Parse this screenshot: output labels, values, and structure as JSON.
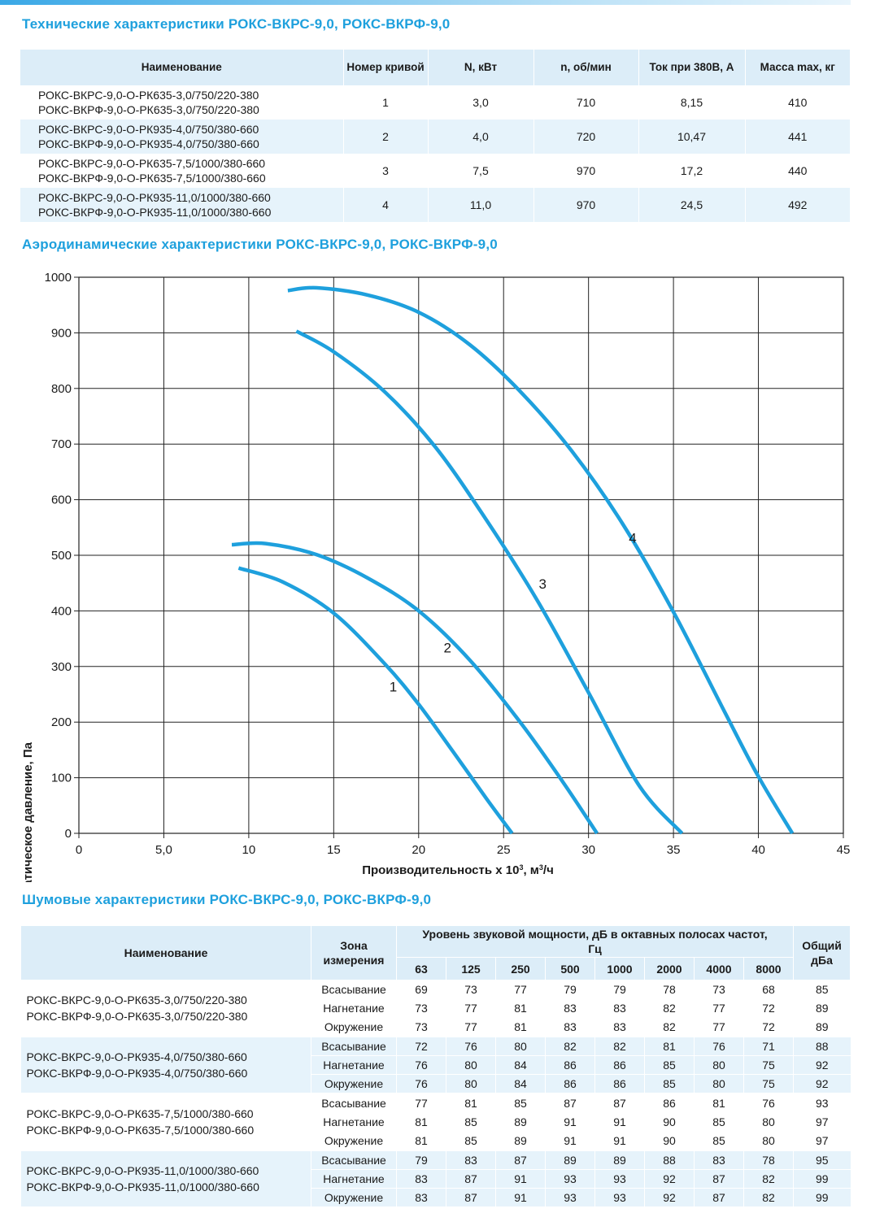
{
  "titles": {
    "tech": "Технические характеристики РОКС-ВКРС-9,0, РОКС-ВКРФ-9,0",
    "aero": "Аэродинамические характеристики РОКС-ВКРС-9,0, РОКС-ВКРФ-9,0",
    "noise": "Шумовые характеристики РОКС-ВКРС-9,0, РОКС-ВКРФ-9,0"
  },
  "tech_table": {
    "headers": [
      "Наименование",
      "Номер кривой",
      "N, кВт",
      "n, об/мин",
      "Ток при 380В, А",
      "Масса max, кг"
    ],
    "rows": [
      {
        "name": [
          "РОКС-ВКРС-9,0-О-РК635-3,0/750/220-380",
          "РОКС-ВКРФ-9,0-О-РК635-3,0/750/220-380"
        ],
        "curve": "1",
        "power": "3,0",
        "rpm": "710",
        "current": "8,15",
        "mass": "410"
      },
      {
        "name": [
          "РОКС-ВКРС-9,0-О-РК935-4,0/750/380-660",
          "РОКС-ВКРФ-9,0-О-РК935-4,0/750/380-660"
        ],
        "curve": "2",
        "power": "4,0",
        "rpm": "720",
        "current": "10,47",
        "mass": "441"
      },
      {
        "name": [
          "РОКС-ВКРС-9,0-О-РК635-7,5/1000/380-660",
          "РОКС-ВКРФ-9,0-О-РК635-7,5/1000/380-660"
        ],
        "curve": "3",
        "power": "7,5",
        "rpm": "970",
        "current": "17,2",
        "mass": "440"
      },
      {
        "name": [
          "РОКС-ВКРС-9,0-О-РК935-11,0/1000/380-660",
          "РОКС-ВКРФ-9,0-О-РК935-11,0/1000/380-660"
        ],
        "curve": "4",
        "power": "11,0",
        "rpm": "970",
        "current": "24,5",
        "mass": "492"
      }
    ]
  },
  "chart_data": {
    "type": "line",
    "title": "Аэродинамические характеристики РОКС-ВКРС-9,0, РОКС-ВКРФ-9,0",
    "xlabel_main": "Производительность х 10",
    "xlabel_sup": "3",
    "xlabel_tail": ", м",
    "xlabel_sup2": "3",
    "xlabel_end": "/ч",
    "ylabel": "Статическое давление, Па",
    "xlim": [
      0,
      45
    ],
    "ylim": [
      0,
      1000
    ],
    "x_ticks": [
      0,
      5,
      10,
      15,
      20,
      25,
      30,
      35,
      40,
      45
    ],
    "x_tick_labels": [
      "0",
      "5,0",
      "10",
      "15",
      "20",
      "25",
      "30",
      "35",
      "40",
      "45"
    ],
    "y_ticks": [
      0,
      100,
      200,
      300,
      400,
      500,
      600,
      700,
      800,
      900,
      1000
    ],
    "y_tick_labels": [
      "0",
      "100",
      "200",
      "300",
      "400",
      "500",
      "600",
      "700",
      "800",
      "900",
      "1000"
    ],
    "grid": true,
    "line_color": "#1ea0dd",
    "series": [
      {
        "name": "1",
        "label_at": [
          18.5,
          255
        ],
        "points": [
          [
            9.4,
            477
          ],
          [
            12,
            452
          ],
          [
            15,
            396
          ],
          [
            18,
            305
          ],
          [
            20,
            232
          ],
          [
            22,
            148
          ],
          [
            24,
            62
          ],
          [
            25.5,
            0
          ]
        ]
      },
      {
        "name": "2",
        "label_at": [
          21.7,
          325
        ],
        "points": [
          [
            9,
            519
          ],
          [
            11,
            521
          ],
          [
            14,
            501
          ],
          [
            17,
            459
          ],
          [
            20,
            400
          ],
          [
            23,
            312
          ],
          [
            26,
            199
          ],
          [
            28.5,
            92
          ],
          [
            30.5,
            0
          ]
        ]
      },
      {
        "name": "3",
        "label_at": [
          27.3,
          440
        ],
        "points": [
          [
            12.8,
            903
          ],
          [
            15,
            866
          ],
          [
            18,
            794
          ],
          [
            21,
            694
          ],
          [
            24,
            563
          ],
          [
            27,
            418
          ],
          [
            30,
            253
          ],
          [
            33,
            85
          ],
          [
            35.5,
            0
          ]
        ]
      },
      {
        "name": "4",
        "label_at": [
          32.6,
          523
        ],
        "points": [
          [
            12.3,
            976
          ],
          [
            14,
            981
          ],
          [
            17,
            968
          ],
          [
            20,
            937
          ],
          [
            23,
            879
          ],
          [
            26,
            794
          ],
          [
            29,
            688
          ],
          [
            32,
            557
          ],
          [
            35,
            398
          ],
          [
            38,
            219
          ],
          [
            40,
            102
          ],
          [
            42,
            0
          ]
        ]
      }
    ]
  },
  "noise_table": {
    "header_name": "Наименование",
    "header_zone": "Зона измерения",
    "header_band": "Уровень звуковой мощности, дБ в октавных полосах частот, Гц",
    "header_total": "Общий дБа",
    "freqs": [
      "63",
      "125",
      "250",
      "500",
      "1000",
      "2000",
      "4000",
      "8000"
    ],
    "groups": [
      {
        "name": [
          "РОКС-ВКРС-9,0-О-РК635-3,0/750/220-380",
          "РОКС-ВКРФ-9,0-О-РК635-3,0/750/220-380"
        ],
        "rows": [
          {
            "zone": "Всасывание",
            "values": [
              "69",
              "73",
              "77",
              "79",
              "79",
              "78",
              "73",
              "68"
            ],
            "total": "85"
          },
          {
            "zone": "Нагнетание",
            "values": [
              "73",
              "77",
              "81",
              "83",
              "83",
              "82",
              "77",
              "72"
            ],
            "total": "89"
          },
          {
            "zone": "Окружение",
            "values": [
              "73",
              "77",
              "81",
              "83",
              "83",
              "82",
              "77",
              "72"
            ],
            "total": "89"
          }
        ]
      },
      {
        "name": [
          "РОКС-ВКРС-9,0-О-РК935-4,0/750/380-660",
          "РОКС-ВКРФ-9,0-О-РК935-4,0/750/380-660"
        ],
        "rows": [
          {
            "zone": "Всасывание",
            "values": [
              "72",
              "76",
              "80",
              "82",
              "82",
              "81",
              "76",
              "71"
            ],
            "total": "88"
          },
          {
            "zone": "Нагнетание",
            "values": [
              "76",
              "80",
              "84",
              "86",
              "86",
              "85",
              "80",
              "75"
            ],
            "total": "92"
          },
          {
            "zone": "Окружение",
            "values": [
              "76",
              "80",
              "84",
              "86",
              "86",
              "85",
              "80",
              "75"
            ],
            "total": "92"
          }
        ]
      },
      {
        "name": [
          "РОКС-ВКРС-9,0-О-РК635-7,5/1000/380-660",
          "РОКС-ВКРФ-9,0-О-РК635-7,5/1000/380-660"
        ],
        "rows": [
          {
            "zone": "Всасывание",
            "values": [
              "77",
              "81",
              "85",
              "87",
              "87",
              "86",
              "81",
              "76"
            ],
            "total": "93"
          },
          {
            "zone": "Нагнетание",
            "values": [
              "81",
              "85",
              "89",
              "91",
              "91",
              "90",
              "85",
              "80"
            ],
            "total": "97"
          },
          {
            "zone": "Окружение",
            "values": [
              "81",
              "85",
              "89",
              "91",
              "91",
              "90",
              "85",
              "80"
            ],
            "total": "97"
          }
        ]
      },
      {
        "name": [
          "РОКС-ВКРС-9,0-О-РК935-11,0/1000/380-660",
          "РОКС-ВКРФ-9,0-О-РК935-11,0/1000/380-660"
        ],
        "rows": [
          {
            "zone": "Всасывание",
            "values": [
              "79",
              "83",
              "87",
              "89",
              "89",
              "88",
              "83",
              "78"
            ],
            "total": "95"
          },
          {
            "zone": "Нагнетание",
            "values": [
              "83",
              "87",
              "91",
              "93",
              "93",
              "92",
              "87",
              "82"
            ],
            "total": "99"
          },
          {
            "zone": "Окружение",
            "values": [
              "83",
              "87",
              "91",
              "93",
              "93",
              "92",
              "87",
              "82"
            ],
            "total": "99"
          }
        ]
      }
    ]
  }
}
